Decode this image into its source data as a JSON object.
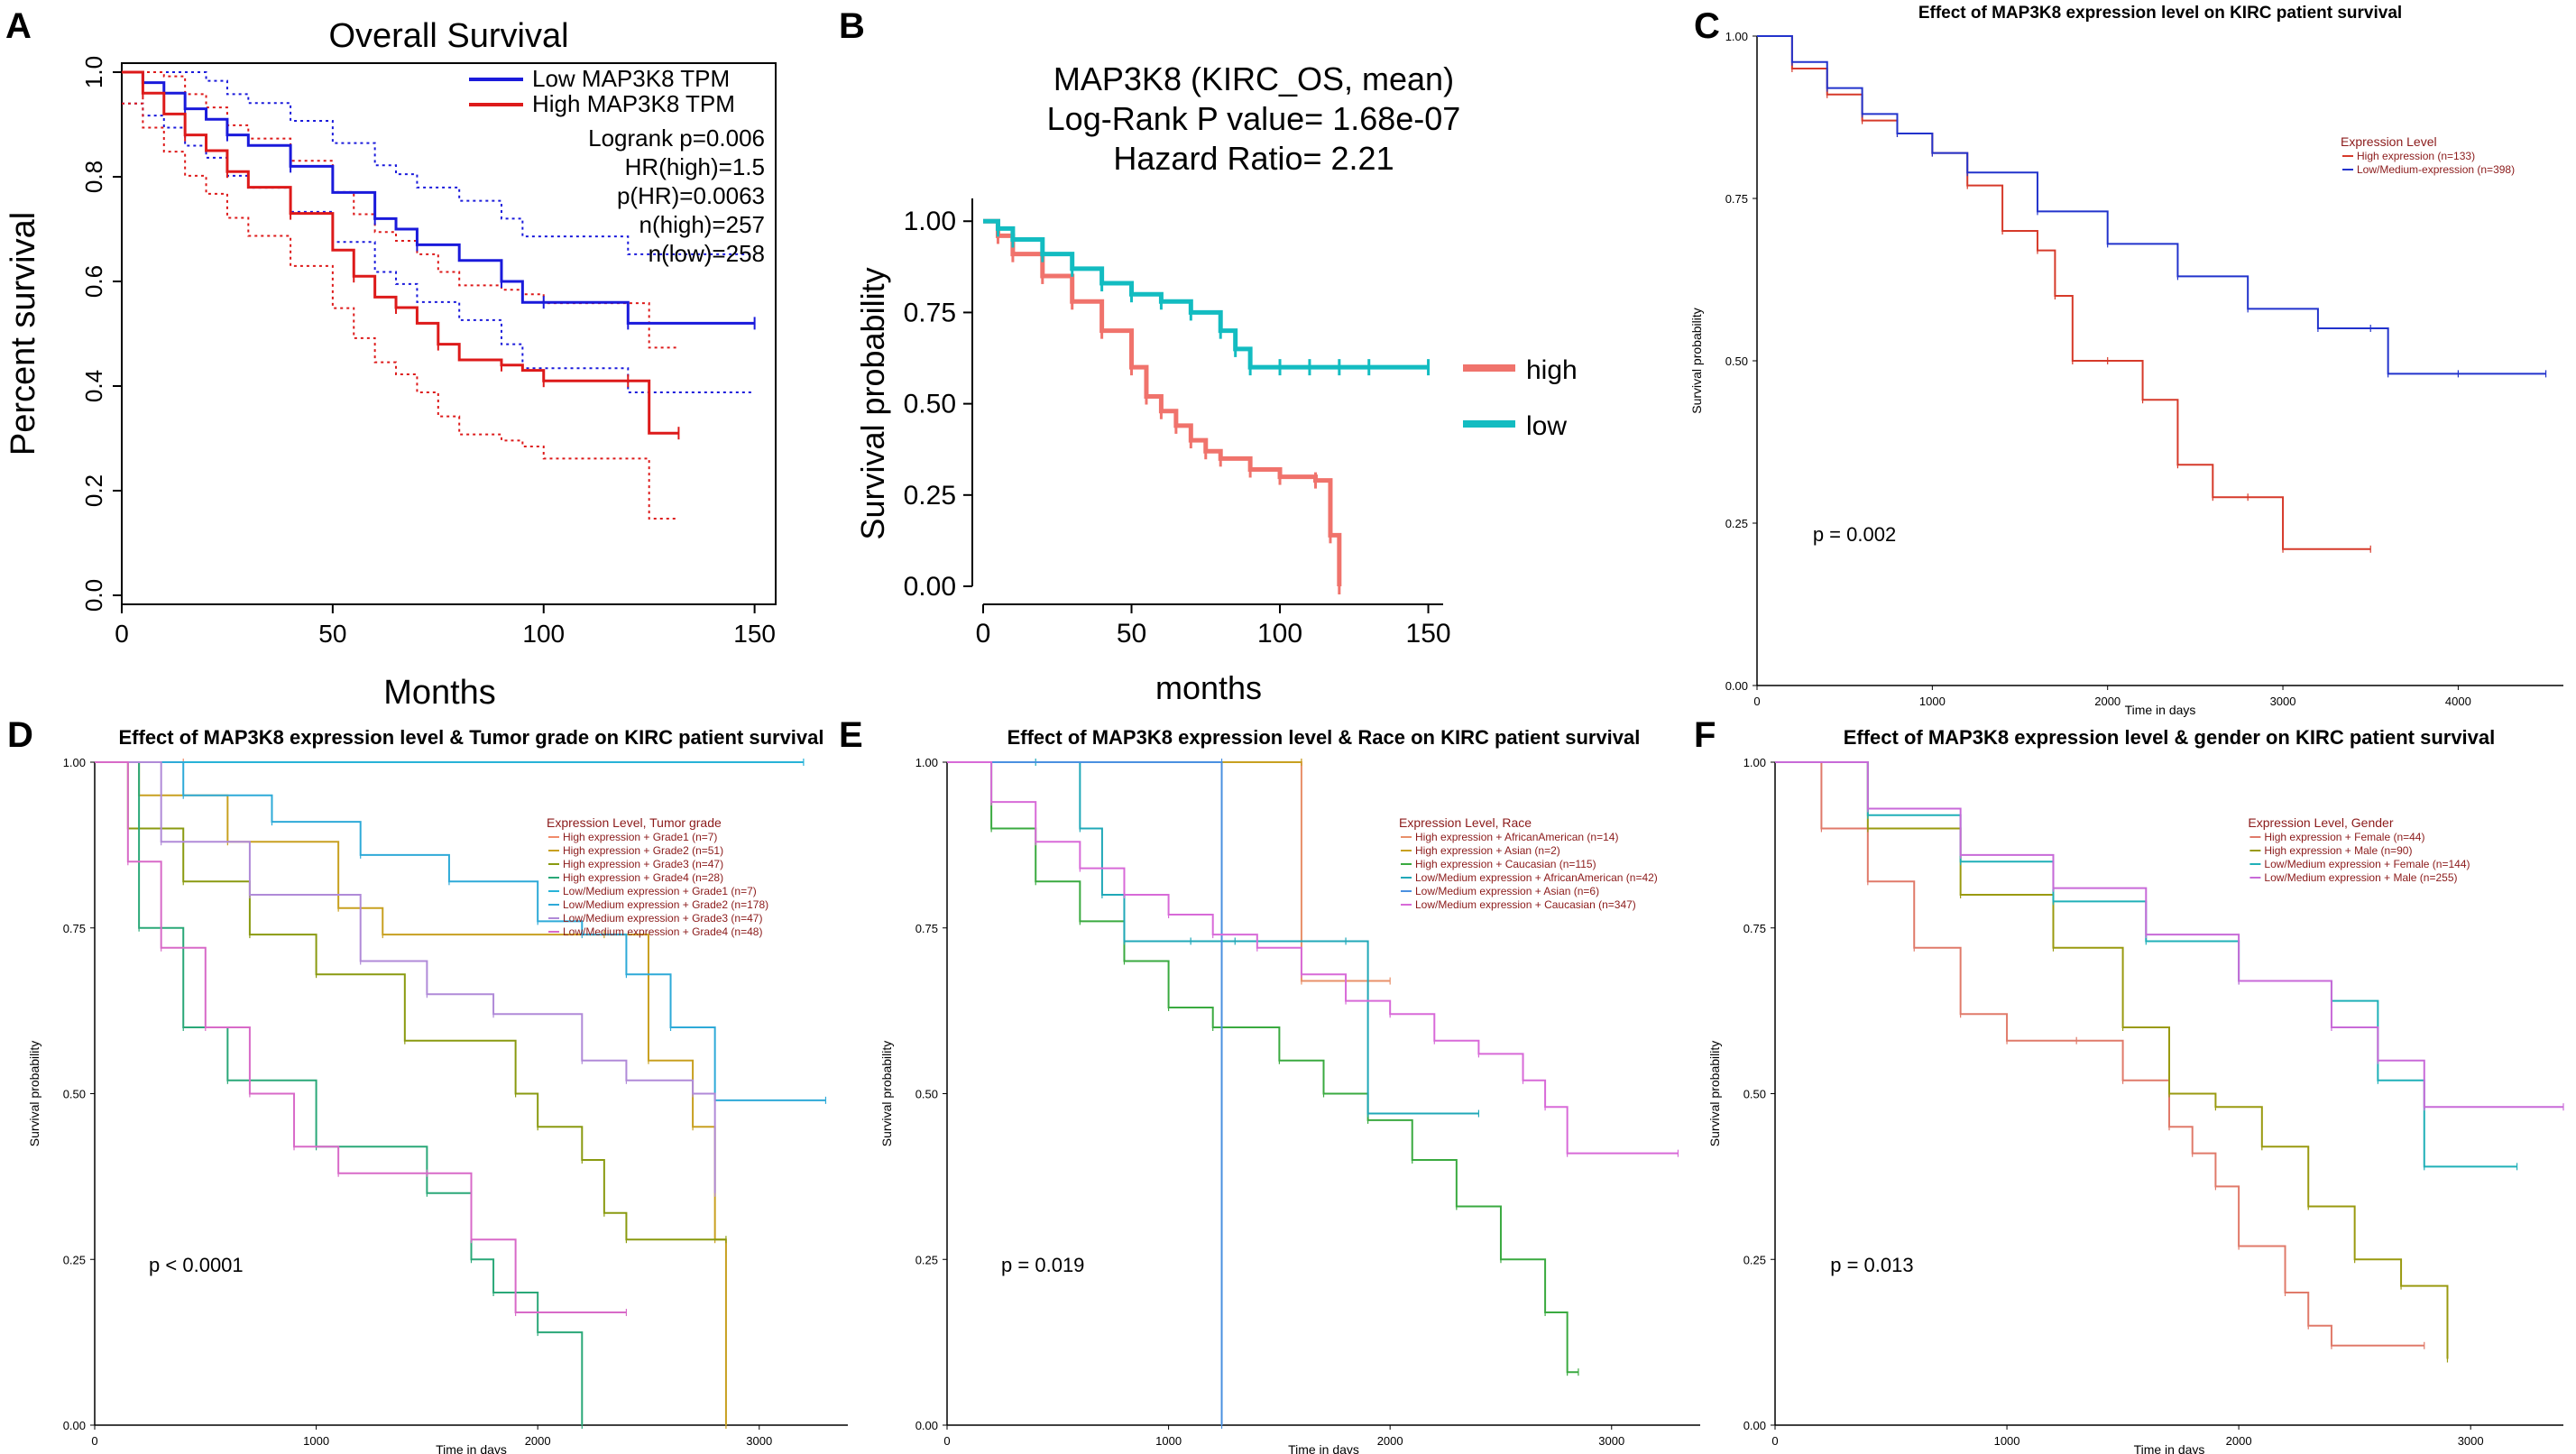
{
  "panel_letters": [
    "A",
    "B",
    "C",
    "D",
    "E",
    "F"
  ],
  "chart_data": [
    {
      "panel": "A",
      "type": "line",
      "title": "Overall Survival",
      "xlabel": "Months",
      "ylabel": "Percent survival",
      "xlim": [
        0,
        155
      ],
      "ylim": [
        0,
        1.0
      ],
      "xticks": [
        0,
        50,
        100,
        150
      ],
      "yticks": [
        0.0,
        0.2,
        0.4,
        0.6,
        0.8,
        1.0
      ],
      "ytick_labels": [
        "0.0",
        "0.2",
        "0.4",
        "0.6",
        "0.8",
        "1.0"
      ],
      "legend": [
        "Low MAP3K8 TPM",
        "High MAP3K8 TPM"
      ],
      "stats": [
        "Logrank p=0.006",
        "HR(high)=1.5",
        "p(HR)=0.0063",
        "n(high)=257",
        "n(low)=258"
      ],
      "series": [
        {
          "name": "Low MAP3K8 TPM",
          "color": "#1a1adb",
          "x": [
            0,
            5,
            10,
            15,
            20,
            25,
            30,
            40,
            50,
            60,
            65,
            70,
            80,
            90,
            95,
            100,
            110,
            120,
            135,
            150
          ],
          "y": [
            1.0,
            0.98,
            0.96,
            0.93,
            0.91,
            0.88,
            0.86,
            0.82,
            0.77,
            0.72,
            0.7,
            0.67,
            0.64,
            0.6,
            0.56,
            0.56,
            0.56,
            0.52,
            0.52,
            0.52
          ]
        },
        {
          "name": "High MAP3K8 TPM",
          "color": "#dd1a1a",
          "x": [
            0,
            5,
            10,
            15,
            20,
            25,
            30,
            40,
            50,
            55,
            60,
            65,
            70,
            75,
            80,
            90,
            95,
            100,
            110,
            120,
            125,
            132
          ],
          "y": [
            1.0,
            0.96,
            0.92,
            0.88,
            0.85,
            0.81,
            0.78,
            0.73,
            0.66,
            0.61,
            0.57,
            0.55,
            0.52,
            0.48,
            0.45,
            0.44,
            0.43,
            0.41,
            0.41,
            0.41,
            0.31,
            0.31
          ]
        }
      ]
    },
    {
      "panel": "B",
      "type": "line",
      "title_lines": [
        "MAP3K8 (KIRC_OS, mean)",
        "Log-Rank P value= 1.68e-07",
        "Hazard Ratio= 2.21"
      ],
      "xlabel": "months",
      "ylabel": "Survival probability",
      "xlim": [
        0,
        155
      ],
      "ylim": [
        0,
        1.05
      ],
      "xticks": [
        0,
        50,
        100,
        150
      ],
      "yticks": [
        0.0,
        0.25,
        0.5,
        0.75,
        1.0
      ],
      "ytick_labels": [
        "0.00",
        "0.25",
        "0.50",
        "0.75",
        "1.00"
      ],
      "legend": [
        "high",
        "low"
      ],
      "series": [
        {
          "name": "high",
          "color": "#f0736c",
          "x": [
            0,
            5,
            10,
            20,
            30,
            40,
            50,
            55,
            60,
            65,
            70,
            75,
            80,
            90,
            100,
            112,
            117,
            120
          ],
          "y": [
            1.0,
            0.96,
            0.91,
            0.85,
            0.78,
            0.7,
            0.6,
            0.52,
            0.48,
            0.44,
            0.4,
            0.37,
            0.35,
            0.32,
            0.3,
            0.29,
            0.14,
            0.0
          ]
        },
        {
          "name": "low",
          "color": "#13bcc1",
          "x": [
            0,
            5,
            10,
            20,
            30,
            40,
            50,
            60,
            70,
            80,
            85,
            90,
            100,
            110,
            120,
            130,
            150
          ],
          "y": [
            1.0,
            0.98,
            0.95,
            0.91,
            0.87,
            0.83,
            0.8,
            0.78,
            0.75,
            0.7,
            0.65,
            0.6,
            0.6,
            0.6,
            0.6,
            0.6,
            0.6
          ]
        }
      ]
    },
    {
      "panel": "C",
      "type": "line",
      "title": "Effect of MAP3K8 expression level on KIRC patient survival",
      "xlabel": "Time in days",
      "ylabel": "Survival probability",
      "xlim": [
        0,
        4600
      ],
      "ylim": [
        0,
        1.0
      ],
      "xticks": [
        0,
        1000,
        2000,
        3000,
        4000
      ],
      "yticks": [
        0.0,
        0.25,
        0.5,
        0.75,
        1.0
      ],
      "ytick_labels": [
        "0.00",
        "0.25",
        "0.50",
        "0.75",
        "1.00"
      ],
      "legend_title": "Expression Level",
      "legend": [
        "High expression (n=133)",
        "Low/Medium-expression (n=398)"
      ],
      "annotation": "p = 0.002",
      "series": [
        {
          "name": "High expression (n=133)",
          "color": "#d63a2a",
          "x": [
            0,
            200,
            400,
            600,
            800,
            1000,
            1200,
            1400,
            1600,
            1700,
            1800,
            2000,
            2200,
            2400,
            2600,
            2800,
            3000,
            3500
          ],
          "y": [
            1.0,
            0.95,
            0.91,
            0.87,
            0.85,
            0.82,
            0.77,
            0.7,
            0.67,
            0.6,
            0.5,
            0.5,
            0.44,
            0.34,
            0.29,
            0.29,
            0.21,
            0.21
          ]
        },
        {
          "name": "Low/Medium-expression (n=398)",
          "color": "#2233cc",
          "x": [
            0,
            200,
            400,
            600,
            800,
            1000,
            1200,
            1600,
            2000,
            2400,
            2800,
            3200,
            3500,
            3600,
            4000,
            4500
          ],
          "y": [
            1.0,
            0.96,
            0.92,
            0.88,
            0.85,
            0.82,
            0.79,
            0.73,
            0.68,
            0.63,
            0.58,
            0.55,
            0.55,
            0.48,
            0.48,
            0.48
          ]
        }
      ]
    },
    {
      "panel": "D",
      "type": "line",
      "title": "Effect of MAP3K8 expression level & Tumor grade on KIRC patient survival",
      "xlabel": "Time in days",
      "ylabel": "Survival probability",
      "xlim": [
        0,
        3400
      ],
      "ylim": [
        0,
        1.0
      ],
      "xticks": [
        0,
        1000,
        2000,
        3000
      ],
      "yticks": [
        0.0,
        0.25,
        0.5,
        0.75,
        1.0
      ],
      "ytick_labels": [
        "0.00",
        "0.25",
        "0.50",
        "0.75",
        "1.00"
      ],
      "legend_title": "Expression Level, Tumor grade",
      "legend": [
        "High expression + Grade1 (n=7)",
        "High expression + Grade2 (n=51)",
        "High expression + Grade3 (n=47)",
        "High expression + Grade4 (n=28)",
        "Low/Medium expression + Grade1 (n=7)",
        "Low/Medium expression + Grade2 (n=178)",
        "Low/Medium expression + Grade3 (n=47)",
        "Low/Medium expression + Grade4 (n=48)"
      ],
      "annotation": "p < 0.0001",
      "series": [
        {
          "name": "High expression + Grade1 (n=7)",
          "color": "#f08b6a",
          "x": [
            0,
            400
          ],
          "y": [
            1.0,
            1.0
          ]
        },
        {
          "name": "High expression + Grade2 (n=51)",
          "color": "#c8a020",
          "x": [
            0,
            200,
            600,
            1100,
            1300,
            2300,
            2500,
            2700,
            2800,
            2850
          ],
          "y": [
            1.0,
            0.95,
            0.88,
            0.78,
            0.74,
            0.74,
            0.55,
            0.45,
            0.28,
            0.0
          ]
        },
        {
          "name": "High expression + Grade3 (n=47)",
          "color": "#8a9a10",
          "x": [
            0,
            150,
            400,
            700,
            1000,
            1400,
            1900,
            2000,
            2200,
            2300,
            2400,
            2850
          ],
          "y": [
            1.0,
            0.9,
            0.82,
            0.74,
            0.68,
            0.58,
            0.5,
            0.45,
            0.4,
            0.32,
            0.28,
            0.28
          ]
        },
        {
          "name": "High expression + Grade4 (n=28)",
          "color": "#2aa878",
          "x": [
            0,
            200,
            400,
            600,
            1000,
            1500,
            1700,
            1800,
            2000,
            2200
          ],
          "y": [
            1.0,
            0.75,
            0.6,
            0.52,
            0.42,
            0.35,
            0.25,
            0.2,
            0.14,
            0.0
          ]
        },
        {
          "name": "Low/Medium expression + Grade1 (n=7)",
          "color": "#27b3d8",
          "x": [
            0,
            3200
          ],
          "y": [
            1.0,
            1.0
          ]
        },
        {
          "name": "Low/Medium expression + Grade2 (n=178)",
          "color": "#2eaad8",
          "x": [
            0,
            400,
            800,
            1200,
            1600,
            2000,
            2200,
            2400,
            2600,
            2800,
            3300
          ],
          "y": [
            1.0,
            0.95,
            0.91,
            0.86,
            0.82,
            0.76,
            0.74,
            0.68,
            0.6,
            0.49,
            0.49
          ]
        },
        {
          "name": "Low/Medium expression + Grade3 (n=47)",
          "color": "#b08ad8",
          "x": [
            0,
            300,
            700,
            1200,
            1500,
            1800,
            2200,
            2400,
            2700,
            2800
          ],
          "y": [
            1.0,
            0.88,
            0.8,
            0.7,
            0.65,
            0.62,
            0.55,
            0.52,
            0.5,
            0.35
          ]
        },
        {
          "name": "Low/Medium expression + Grade4 (n=48)",
          "color": "#d86ac8",
          "x": [
            0,
            150,
            300,
            500,
            700,
            900,
            1100,
            1500,
            1700,
            1900,
            2400
          ],
          "y": [
            1.0,
            0.85,
            0.72,
            0.6,
            0.5,
            0.42,
            0.38,
            0.38,
            0.28,
            0.17,
            0.17
          ]
        }
      ]
    },
    {
      "panel": "E",
      "type": "line",
      "title": "Effect of MAP3K8 expression level & Race on KIRC patient survival",
      "xlabel": "Time in days",
      "ylabel": "Survival probability",
      "xlim": [
        0,
        3400
      ],
      "ylim": [
        0,
        1.0
      ],
      "xticks": [
        0,
        1000,
        2000,
        3000
      ],
      "yticks": [
        0.0,
        0.25,
        0.5,
        0.75,
        1.0
      ],
      "ytick_labels": [
        "0.00",
        "0.25",
        "0.50",
        "0.75",
        "1.00"
      ],
      "legend_title": "Expression Level, Race",
      "legend": [
        "High expression + AfricanAmerican (n=14)",
        "High expression + Asian (n=2)",
        "High expression + Caucasian (n=115)",
        "Low/Medium expression + AfricanAmerican (n=42)",
        "Low/Medium expression + Asian (n=6)",
        "Low/Medium expression + Caucasian (n=347)"
      ],
      "annotation": "p = 0.019",
      "series": [
        {
          "name": "High expression + AfricanAmerican (n=14)",
          "color": "#e8906a",
          "x": [
            0,
            1600,
            1600,
            2000
          ],
          "y": [
            1.0,
            1.0,
            0.67,
            0.67
          ]
        },
        {
          "name": "High expression + Asian (n=2)",
          "color": "#c8a020",
          "x": [
            0,
            1600
          ],
          "y": [
            1.0,
            1.0
          ]
        },
        {
          "name": "High expression + Caucasian (n=115)",
          "color": "#3aaa40",
          "x": [
            0,
            200,
            400,
            600,
            800,
            1000,
            1200,
            1500,
            1700,
            1900,
            2100,
            2300,
            2500,
            2700,
            2800,
            2850
          ],
          "y": [
            1.0,
            0.9,
            0.82,
            0.76,
            0.7,
            0.63,
            0.6,
            0.55,
            0.5,
            0.46,
            0.4,
            0.33,
            0.25,
            0.17,
            0.08,
            0.08
          ]
        },
        {
          "name": "Low/Medium expression + AfricanAmerican (n=42)",
          "color": "#20a8b8",
          "x": [
            0,
            400,
            600,
            700,
            800,
            1100,
            1300,
            1800,
            1900,
            2400
          ],
          "y": [
            1.0,
            1.0,
            0.9,
            0.8,
            0.73,
            0.73,
            0.73,
            0.73,
            0.47,
            0.47
          ]
        },
        {
          "name": "Low/Medium expression + Asian (n=6)",
          "color": "#4a90e0",
          "x": [
            0,
            1240,
            1240
          ],
          "y": [
            1.0,
            1.0,
            0.0
          ]
        },
        {
          "name": "Low/Medium expression + Caucasian (n=347)",
          "color": "#d86ad8",
          "x": [
            0,
            200,
            400,
            600,
            800,
            1000,
            1200,
            1400,
            1600,
            1800,
            2000,
            2200,
            2400,
            2600,
            2700,
            2800,
            3300
          ],
          "y": [
            1.0,
            0.94,
            0.88,
            0.84,
            0.8,
            0.77,
            0.74,
            0.72,
            0.68,
            0.64,
            0.62,
            0.58,
            0.56,
            0.52,
            0.48,
            0.41,
            0.41
          ]
        }
      ]
    },
    {
      "panel": "F",
      "type": "line",
      "title": "Effect of MAP3K8 expression level & gender on KIRC patient survival",
      "xlabel": "Time in days",
      "ylabel": "Survival probability",
      "xlim": [
        0,
        3400
      ],
      "ylim": [
        0,
        1.0
      ],
      "xticks": [
        0,
        1000,
        2000,
        3000
      ],
      "yticks": [
        0.0,
        0.25,
        0.5,
        0.75,
        1.0
      ],
      "ytick_labels": [
        "0.00",
        "0.25",
        "0.50",
        "0.75",
        "1.00"
      ],
      "legend_title": "Expression Level, Gender",
      "legend": [
        "High expression + Female (n=44)",
        "High expression + Male (n=90)",
        "Low/Medium expression + Female (n=144)",
        "Low/Medium expression + Male (n=255)"
      ],
      "annotation": "p = 0.013",
      "series": [
        {
          "name": "High expression + Female (n=44)",
          "color": "#e07a6a",
          "x": [
            0,
            200,
            400,
            600,
            800,
            1000,
            1300,
            1500,
            1700,
            1800,
            1900,
            2000,
            2200,
            2300,
            2400,
            2800
          ],
          "y": [
            1.0,
            0.9,
            0.82,
            0.72,
            0.62,
            0.58,
            0.58,
            0.52,
            0.45,
            0.41,
            0.36,
            0.27,
            0.2,
            0.15,
            0.12,
            0.12
          ]
        },
        {
          "name": "High expression + Male (n=90)",
          "color": "#9a9a10",
          "x": [
            0,
            400,
            800,
            1200,
            1500,
            1700,
            1900,
            2100,
            2300,
            2500,
            2700,
            2900
          ],
          "y": [
            1.0,
            0.9,
            0.8,
            0.72,
            0.6,
            0.5,
            0.48,
            0.42,
            0.33,
            0.25,
            0.21,
            0.1
          ]
        },
        {
          "name": "Low/Medium expression + Female (n=144)",
          "color": "#20b0b8",
          "x": [
            0,
            400,
            800,
            1200,
            1600,
            2000,
            2400,
            2600,
            2800,
            3200
          ],
          "y": [
            1.0,
            0.92,
            0.85,
            0.79,
            0.73,
            0.67,
            0.64,
            0.52,
            0.39,
            0.39
          ]
        },
        {
          "name": "Low/Medium expression + Male (n=255)",
          "color": "#c86ad8",
          "x": [
            0,
            400,
            800,
            1200,
            1600,
            2000,
            2400,
            2600,
            2800,
            3400
          ],
          "y": [
            1.0,
            0.93,
            0.86,
            0.81,
            0.74,
            0.67,
            0.6,
            0.55,
            0.48,
            0.48
          ]
        }
      ]
    }
  ]
}
